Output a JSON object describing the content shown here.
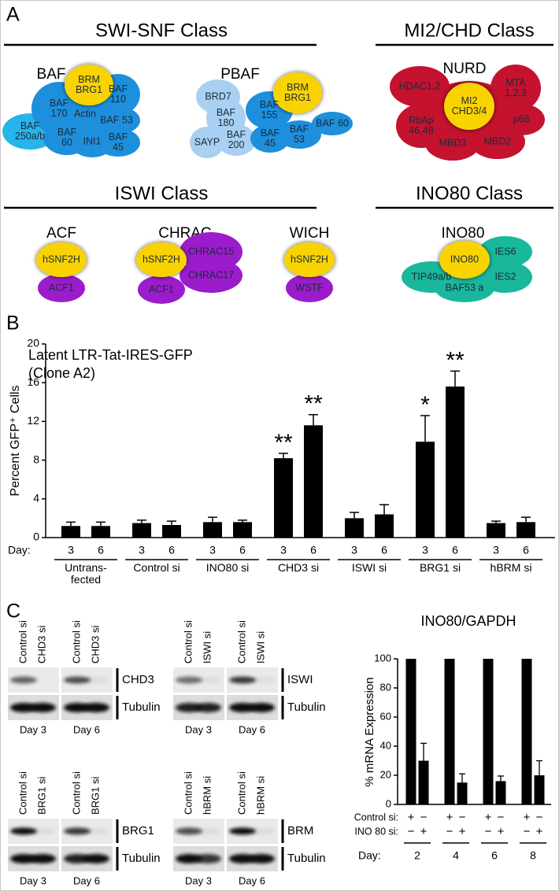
{
  "panel_labels": [
    "A",
    "B",
    "C"
  ],
  "diagram": {
    "classes": [
      {
        "title": "SWI-SNF Class",
        "complexes": [
          {
            "name": "BAF",
            "subunits": [
              "BAF\n250a/b",
              "BAF\n170",
              "Actin",
              "BAF\n110",
              "BAF 53",
              "BAF\n60",
              "INI1",
              "BAF\n45",
              "BRM\nBRG1"
            ]
          },
          {
            "name": "PBAF",
            "subunits": [
              "BRD7",
              "BAF\n180",
              "SAYP",
              "BAF\n200",
              "BAF\n155",
              "BAF\n45",
              "BAF\n53",
              "BAF 60",
              "BRM\nBRG1"
            ]
          }
        ]
      },
      {
        "title": "MI2/CHD Class",
        "complexes": [
          {
            "name": "NURD",
            "subunits": [
              "HDAC1,2",
              "MTA\n1,2,3",
              "RbAp\n46,48",
              "p66",
              "MBD3",
              "MBD2",
              "MI2\nCHD3/4"
            ]
          }
        ]
      },
      {
        "title": "ISWI Class",
        "complexes": [
          {
            "name": "ACF",
            "subunits": [
              "ACF1",
              "hSNF2H"
            ]
          },
          {
            "name": "CHRAC",
            "subunits": [
              "CHRAC15",
              "CHRAC17",
              "ACF1",
              "hSNF2H"
            ]
          },
          {
            "name": "WICH",
            "subunits": [
              "WSTF",
              "hSNF2H"
            ]
          }
        ]
      },
      {
        "title": "INO80 Class",
        "complexes": [
          {
            "name": "INO80",
            "subunits": [
              "TIP49a/b",
              "BAF53 a",
              "IES6",
              "IES2",
              "INO80"
            ]
          }
        ]
      }
    ]
  },
  "chart_data": [
    {
      "type": "bar",
      "title": "Latent LTR-Tat-IRES-GFP",
      "subtitle": "(Clone A2)",
      "y_label": "Percent GFP⁺ Cells",
      "x_label": "Day:",
      "categories": [
        "Untrans-fected",
        "Control si",
        "INO80 si",
        "CHD3 si",
        "ISWI si",
        "BRG1 si",
        "hBRM si"
      ],
      "series": [
        {
          "name": "3",
          "color": "#000000",
          "values": [
            1.2,
            1.5,
            1.6,
            8.2,
            2.0,
            9.9,
            1.5
          ],
          "errors": [
            0.4,
            0.3,
            0.5,
            0.5,
            0.6,
            2.7,
            0.2
          ],
          "stars": [
            null,
            null,
            null,
            "**",
            null,
            "*",
            null
          ]
        },
        {
          "name": "6",
          "color": "#000000",
          "values": [
            1.2,
            1.3,
            1.6,
            11.6,
            2.4,
            15.6,
            1.6
          ],
          "errors": [
            0.4,
            0.4,
            0.2,
            1.1,
            1.0,
            1.6,
            0.5
          ],
          "stars": [
            null,
            null,
            null,
            "**",
            null,
            "**",
            null
          ]
        }
      ],
      "ylim": [
        0,
        20
      ],
      "yticks": [
        0,
        4,
        8,
        12,
        16,
        20
      ]
    },
    {
      "type": "bar",
      "title": "INO80/GAPDH",
      "y_label": "% mRNA Expression",
      "x_label": "Day:",
      "categories": [
        "2",
        "4",
        "6",
        "8"
      ],
      "conditions": [
        {
          "label": "Control si:",
          "signs": [
            "+",
            "−"
          ]
        },
        {
          "label": "INO 80 si:",
          "signs": [
            "−",
            "+"
          ]
        }
      ],
      "series": [
        {
          "color": "#000000",
          "values": [
            100,
            100,
            100,
            100
          ]
        },
        {
          "color": "#000000",
          "values": [
            30,
            15,
            16,
            20
          ],
          "errors": [
            12,
            6,
            3.5,
            10
          ]
        }
      ],
      "ylim": [
        0,
        100
      ],
      "yticks": [
        0,
        20,
        40,
        60,
        80,
        100
      ]
    }
  ],
  "blots": [
    {
      "target": "CHD3",
      "loading": "Tubulin",
      "lanes": [
        "Control si",
        "CHD3 si",
        "Control si",
        "CHD3 si"
      ],
      "days": [
        "Day 3",
        "Day 6"
      ]
    },
    {
      "target": "ISWI",
      "loading": "Tubulin",
      "lanes": [
        "Control si",
        "ISWI si",
        "Control si",
        "ISWI si"
      ],
      "days": [
        "Day 3",
        "Day 6"
      ]
    },
    {
      "target": "BRG1",
      "loading": "Tubulin",
      "lanes": [
        "Control si",
        "BRG1 si",
        "Control si",
        "BRG1 si"
      ],
      "days": [
        "Day 3",
        "Day 6"
      ]
    },
    {
      "target": "BRM",
      "loading": "Tubulin",
      "lanes": [
        "Control si",
        "hBRM si",
        "Control si",
        "hBRM si"
      ],
      "days": [
        "Day 3",
        "Day 6"
      ]
    }
  ]
}
